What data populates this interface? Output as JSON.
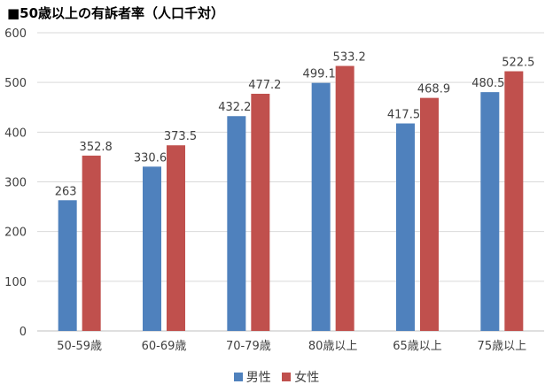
{
  "title": "■50歳以上の有訴者率（人口千対）",
  "chart_data": {
    "type": "bar",
    "categories": [
      "50-59歳",
      "60-69歳",
      "70-79歳",
      "80歳以上",
      "65歳以上",
      "75歳以上"
    ],
    "series": [
      {
        "name": "男性",
        "color": "#4F81BD",
        "values": [
          263,
          330.6,
          432.2,
          499.1,
          417.5,
          480.5
        ],
        "labels": [
          "263",
          "330.6",
          "432.2",
          "499.1",
          "417.5",
          "480.5"
        ]
      },
      {
        "name": "女性",
        "color": "#C0504D",
        "values": [
          352.8,
          373.5,
          477.2,
          533.2,
          468.9,
          522.5
        ],
        "labels": [
          "352.8",
          "373.5",
          "477.2",
          "533.2",
          "468.9",
          "522.5"
        ]
      }
    ],
    "ylim": [
      0,
      600
    ],
    "yticks": [
      0,
      100,
      200,
      300,
      400,
      500,
      600
    ],
    "grid": true,
    "legend_position": "bottom"
  }
}
